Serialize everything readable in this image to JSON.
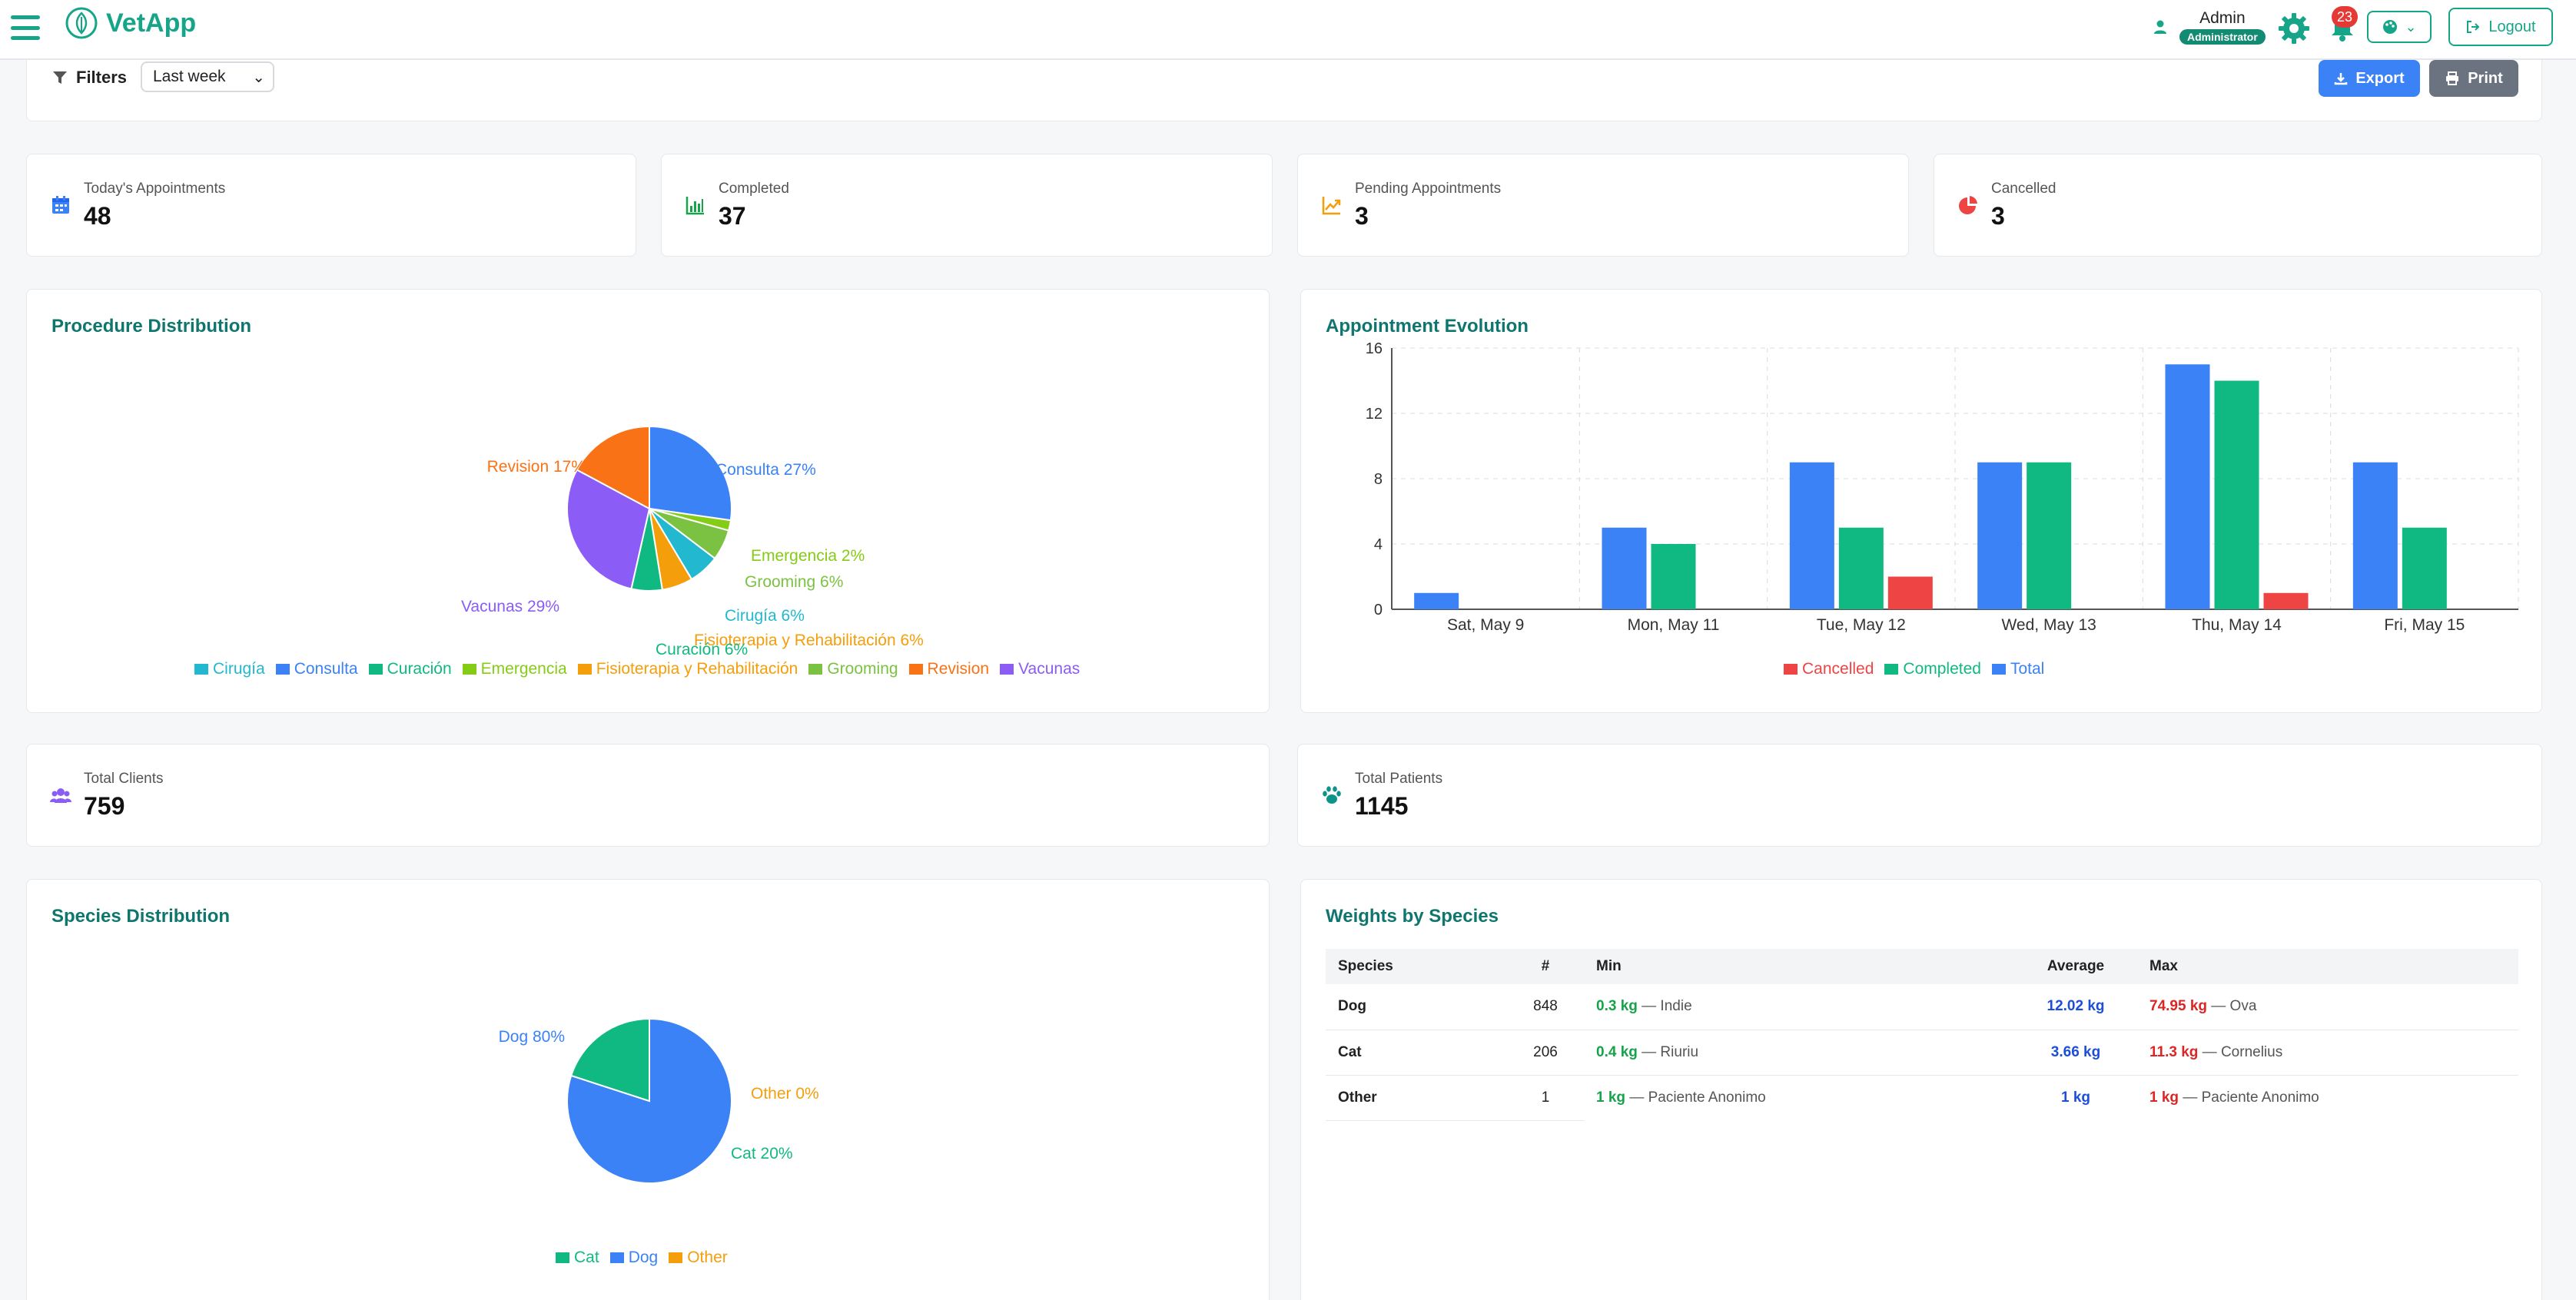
{
  "app": {
    "name": "VetApp"
  },
  "user": {
    "name": "Admin",
    "role": "Administrator",
    "notifications": "23",
    "logout_label": "Logout"
  },
  "filters": {
    "label": "Filters",
    "period": "Last week",
    "export_label": "Export",
    "print_label": "Print"
  },
  "stats": [
    {
      "label": "Today's Appointments",
      "value": "48",
      "icon": "calendar-icon",
      "color": "#3b82f6"
    },
    {
      "label": "Completed",
      "value": "37",
      "icon": "bar-chart-icon",
      "color": "#16a34a"
    },
    {
      "label": "Pending Appointments",
      "value": "3",
      "icon": "trend-up-icon",
      "color": "#f59e0b"
    },
    {
      "label": "Cancelled",
      "value": "3",
      "icon": "pie-chart-icon",
      "color": "#ef4444"
    }
  ],
  "totals": [
    {
      "label": "Total Clients",
      "value": "759",
      "icon": "users-icon",
      "color": "#8b5cf6"
    },
    {
      "label": "Total Patients",
      "value": "1145",
      "icon": "paw-icon",
      "color": "#0d9488"
    }
  ],
  "procedure_panel": {
    "title": "Procedure Distribution"
  },
  "evolution_panel": {
    "title": "Appointment Evolution"
  },
  "species_panel": {
    "title": "Species Distribution"
  },
  "weights_panel": {
    "title": "Weights by Species",
    "headers": [
      "Species",
      "#",
      "Min",
      "Average",
      "Max"
    ],
    "rows": [
      {
        "species": "Dog",
        "count": "848",
        "min": "0.3 kg",
        "min_name": "— Indie",
        "avg": "12.02 kg",
        "max": "74.95 kg",
        "max_name": "— Ova"
      },
      {
        "species": "Cat",
        "count": "206",
        "min": "0.4 kg",
        "min_name": "— Riuriu",
        "avg": "3.66 kg",
        "max": "11.3 kg",
        "max_name": "— Cornelius"
      },
      {
        "species": "Other",
        "count": "1",
        "min": "1 kg",
        "min_name": "— Paciente Anonimo",
        "avg": "1 kg",
        "max": "1 kg",
        "max_name": "— Paciente Anonimo"
      }
    ]
  },
  "chart_data": [
    {
      "type": "pie",
      "title": "Procedure Distribution",
      "categories": [
        "Consulta",
        "Emergencia",
        "Grooming",
        "Cirugía",
        "Fisioterapia y Rehabilitación",
        "Curación",
        "Vacunas",
        "Revision"
      ],
      "values": [
        27,
        2,
        6,
        6,
        6,
        6,
        29,
        17
      ],
      "labels": [
        "Consulta 27%",
        "Emergencia 2%",
        "Grooming 6%",
        "Cirugía 6%",
        "Fisioterapia y Rehabilitación 6%",
        "Curación 6%",
        "Vacunas 29%",
        "Revision 17%"
      ],
      "colors": [
        "#3b82f6",
        "#84cc16",
        "#7cc242",
        "#22b8cf",
        "#f59e0b",
        "#10b981",
        "#8b5cf6",
        "#f97316"
      ],
      "legend": [
        {
          "name": "Cirugía",
          "color": "#22b8cf"
        },
        {
          "name": "Consulta",
          "color": "#3b82f6"
        },
        {
          "name": "Curación",
          "color": "#10b981"
        },
        {
          "name": "Emergencia",
          "color": "#84cc16"
        },
        {
          "name": "Fisioterapia y Rehabilitación",
          "color": "#f59e0b"
        },
        {
          "name": "Grooming",
          "color": "#7cc242"
        },
        {
          "name": "Revision",
          "color": "#f97316"
        },
        {
          "name": "Vacunas",
          "color": "#8b5cf6"
        }
      ],
      "legend_position": "bottom"
    },
    {
      "type": "bar",
      "title": "Appointment Evolution",
      "categories": [
        "Sat, May 9",
        "Mon, May 11",
        "Tue, May 12",
        "Wed, May 13",
        "Thu, May 14",
        "Fri, May 15"
      ],
      "series": [
        {
          "name": "Total",
          "color": "#3b82f6",
          "values": [
            1,
            5,
            9,
            9,
            15,
            9
          ]
        },
        {
          "name": "Completed",
          "color": "#10b981",
          "values": [
            0,
            4,
            5,
            9,
            14,
            5
          ]
        },
        {
          "name": "Cancelled",
          "color": "#ef4444",
          "values": [
            0,
            0,
            2,
            0,
            1,
            0
          ]
        }
      ],
      "legend": [
        {
          "name": "Cancelled",
          "color": "#ef4444"
        },
        {
          "name": "Completed",
          "color": "#10b981"
        },
        {
          "name": "Total",
          "color": "#3b82f6"
        }
      ],
      "yticks": [
        "0",
        "4",
        "8",
        "12",
        "16"
      ],
      "ylim": [
        0,
        16
      ],
      "grid": true,
      "legend_position": "bottom"
    },
    {
      "type": "pie",
      "title": "Species Distribution",
      "categories": [
        "Dog",
        "Cat",
        "Other"
      ],
      "values": [
        80,
        20,
        0
      ],
      "labels": [
        "Dog 80%",
        "Cat 20%",
        "Other 0%"
      ],
      "colors": [
        "#3b82f6",
        "#10b981",
        "#f59e0b"
      ],
      "legend": [
        {
          "name": "Cat",
          "color": "#10b981"
        },
        {
          "name": "Dog",
          "color": "#3b82f6"
        },
        {
          "name": "Other",
          "color": "#f59e0b"
        }
      ],
      "legend_position": "bottom"
    }
  ]
}
